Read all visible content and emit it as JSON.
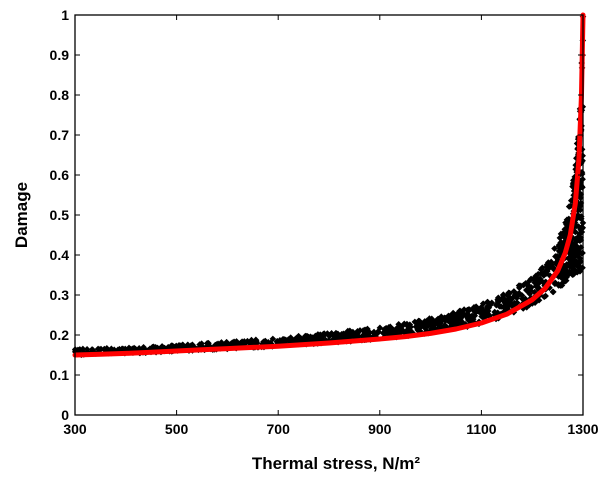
{
  "chart_data": {
    "type": "scatter",
    "title": "",
    "xlabel": "Thermal stress, N/m²",
    "ylabel": "Damage",
    "xlim": [
      300,
      1300
    ],
    "ylim": [
      0,
      1
    ],
    "xticks": [
      300,
      500,
      700,
      900,
      1100,
      1300
    ],
    "yticks": [
      0,
      0.1,
      0.2,
      0.3,
      0.4,
      0.5,
      0.6,
      0.7,
      0.8,
      0.9,
      1
    ],
    "grid": false,
    "legend": "none",
    "series": [
      {
        "kind": "scatter",
        "color": "#000000",
        "marker": "diamond",
        "description_points": "dense band of black scatter points around the fitted curve, spread widening near 1300",
        "x": [
          300,
          350,
          400,
          450,
          500,
          550,
          600,
          650,
          700,
          750,
          800,
          850,
          900,
          950,
          1000,
          1050,
          1100,
          1150,
          1200,
          1230,
          1250,
          1270,
          1285,
          1295,
          1300
        ],
        "y_low": [
          0.15,
          0.152,
          0.154,
          0.156,
          0.159,
          0.162,
          0.165,
          0.168,
          0.172,
          0.176,
          0.18,
          0.185,
          0.19,
          0.197,
          0.205,
          0.215,
          0.228,
          0.248,
          0.275,
          0.295,
          0.315,
          0.335,
          0.345,
          0.35,
          0.35
        ],
        "y_high": [
          0.165,
          0.167,
          0.169,
          0.171,
          0.175,
          0.179,
          0.183,
          0.188,
          0.193,
          0.199,
          0.205,
          0.212,
          0.22,
          0.23,
          0.242,
          0.258,
          0.278,
          0.305,
          0.345,
          0.385,
          0.43,
          0.5,
          0.62,
          0.8,
          1.0
        ]
      },
      {
        "kind": "line",
        "color": "#ff0000",
        "x": [
          300,
          350,
          400,
          450,
          500,
          550,
          600,
          650,
          700,
          750,
          800,
          850,
          900,
          950,
          1000,
          1050,
          1100,
          1150,
          1200,
          1225,
          1250,
          1265,
          1275,
          1285,
          1292,
          1297,
          1300
        ],
        "y": [
          0.15,
          0.152,
          0.154,
          0.157,
          0.16,
          0.163,
          0.166,
          0.169,
          0.172,
          0.176,
          0.18,
          0.185,
          0.19,
          0.196,
          0.204,
          0.215,
          0.23,
          0.252,
          0.288,
          0.316,
          0.36,
          0.405,
          0.45,
          0.53,
          0.64,
          0.8,
          1.0
        ]
      }
    ]
  }
}
